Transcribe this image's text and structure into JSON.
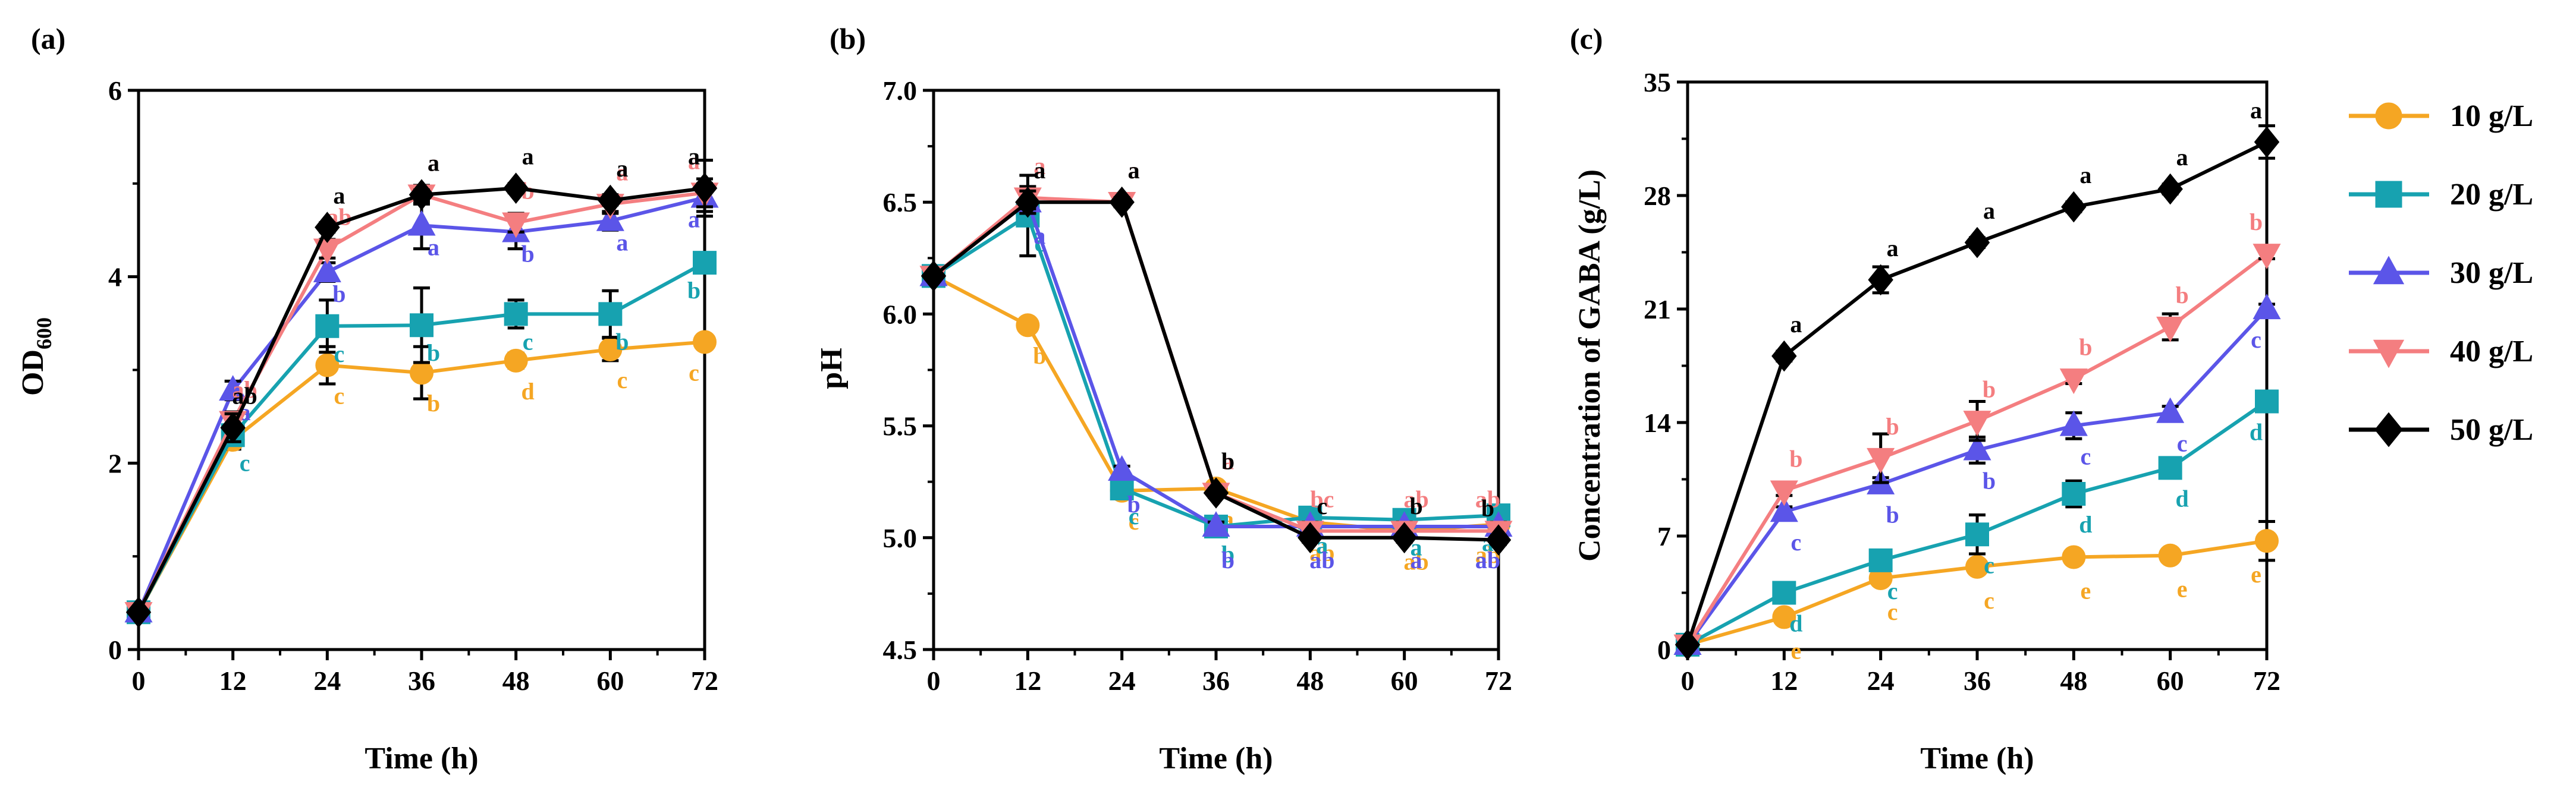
{
  "colors": {
    "10 g/L": "#F5A623",
    "20 g/L": "#17A2B0",
    "30 g/L": "#5B55E8",
    "40 g/L": "#F47E80",
    "50 g/L": "#000000"
  },
  "legend": [
    {
      "label": "10 g/L",
      "marker": "circle"
    },
    {
      "label": "20 g/L",
      "marker": "square"
    },
    {
      "label": "30 g/L",
      "marker": "triangle-up"
    },
    {
      "label": "40 g/L",
      "marker": "triangle-down"
    },
    {
      "label": "50 g/L",
      "marker": "diamond"
    }
  ],
  "chart_data": [
    {
      "panel": "(a)",
      "type": "line",
      "xlabel": "Time (h)",
      "ylabel": "OD600",
      "x": [
        0,
        12,
        24,
        36,
        48,
        60,
        72
      ],
      "xticks": [
        "0",
        "12",
        "24",
        "36",
        "48",
        "60",
        "72"
      ],
      "ylim": [
        0,
        6
      ],
      "yticks": [
        0,
        2,
        4,
        6
      ],
      "ytick_labels": [
        "0",
        "2",
        "4",
        "6"
      ],
      "series": [
        {
          "name": "10 g/L",
          "values": [
            0.4,
            2.25,
            3.05,
            2.97,
            3.1,
            3.22,
            3.3
          ],
          "errors": [
            0,
            0.1,
            0.2,
            0.28,
            0.08,
            0.12,
            0.05
          ],
          "letters": [
            "",
            "",
            "c",
            "b",
            "d",
            "c",
            "c"
          ]
        },
        {
          "name": "20 g/L",
          "values": [
            0.4,
            2.3,
            3.47,
            3.48,
            3.6,
            3.6,
            4.15
          ],
          "errors": [
            0,
            0.1,
            0.28,
            0.4,
            0.15,
            0.25,
            0.1
          ],
          "letters": [
            "",
            "c",
            "c",
            "b",
            "c",
            "b",
            "b"
          ]
        },
        {
          "name": "30 g/L",
          "values": [
            0.4,
            2.78,
            4.05,
            4.55,
            4.48,
            4.6,
            4.85
          ],
          "errors": [
            0,
            0.1,
            0.1,
            0.25,
            0.18,
            0.1,
            0.15
          ],
          "letters": [
            "",
            "a",
            "b",
            "a",
            "b",
            "a",
            "a"
          ]
        },
        {
          "name": "40 g/L",
          "values": [
            0.4,
            2.45,
            4.3,
            4.88,
            4.58,
            4.78,
            4.9
          ],
          "errors": [
            0,
            0.1,
            0.1,
            0.1,
            0.1,
            0.1,
            0.15
          ],
          "letters": [
            "",
            "ab",
            "ab",
            "a",
            "b",
            "a",
            "a"
          ]
        },
        {
          "name": "50 g/L",
          "values": [
            0.4,
            2.38,
            4.53,
            4.88,
            4.95,
            4.82,
            4.95
          ],
          "errors": [
            0,
            0.15,
            0.05,
            0.05,
            0.05,
            0.05,
            0.3
          ],
          "letters": [
            "",
            "ab",
            "a",
            "a",
            "a",
            "a",
            "a"
          ]
        }
      ]
    },
    {
      "panel": "(b)",
      "type": "line",
      "xlabel": "Time (h)",
      "ylabel": "pH",
      "x": [
        0,
        12,
        24,
        36,
        48,
        60,
        72
      ],
      "xticks": [
        "0",
        "12",
        "24",
        "36",
        "48",
        "60",
        "72"
      ],
      "ylim": [
        4.5,
        7.0
      ],
      "yticks": [
        4.5,
        5.0,
        5.5,
        6.0,
        6.5,
        7.0
      ],
      "ytick_labels": [
        "4.5",
        "5.0",
        "5.5",
        "6.0",
        "6.5",
        "7.0"
      ],
      "series": [
        {
          "name": "10 g/L",
          "values": [
            6.17,
            5.95,
            5.21,
            5.22,
            5.07,
            5.03,
            5.06
          ],
          "errors": [
            0,
            0.02,
            0.02,
            0.02,
            0.02,
            0.02,
            0.02
          ],
          "letters": [
            "",
            "b",
            "c",
            "a",
            "ab",
            "ab",
            "ab"
          ]
        },
        {
          "name": "20 g/L",
          "values": [
            6.17,
            6.44,
            5.22,
            5.05,
            5.09,
            5.08,
            5.1
          ],
          "errors": [
            0,
            0.18,
            0.02,
            0.04,
            0.02,
            0.02,
            0.02
          ],
          "letters": [
            "",
            "c",
            "c",
            "b",
            "a",
            "a",
            "a"
          ]
        },
        {
          "name": "30 g/L",
          "values": [
            6.17,
            6.5,
            5.3,
            5.05,
            5.05,
            5.05,
            5.05
          ],
          "errors": [
            0,
            0.05,
            0.02,
            0.02,
            0.02,
            0.02,
            0.02
          ],
          "letters": [
            "",
            "a",
            "b",
            "b",
            "ab",
            "a",
            "ab"
          ]
        },
        {
          "name": "40 g/L",
          "values": [
            6.17,
            6.52,
            6.5,
            5.2,
            5.03,
            5.03,
            5.03
          ],
          "errors": [
            0,
            0.05,
            0.02,
            0.02,
            0.02,
            0.02,
            0.02
          ],
          "letters": [
            "",
            "a",
            "a",
            "a",
            "bc",
            "ab",
            "ab"
          ]
        },
        {
          "name": "50 g/L",
          "values": [
            6.17,
            6.5,
            6.5,
            5.2,
            5.0,
            5.0,
            4.99
          ],
          "errors": [
            0,
            0.05,
            0.02,
            0.02,
            0.02,
            0.02,
            0.02
          ],
          "letters": [
            "",
            "a",
            "a",
            "b",
            "c",
            "b",
            "b"
          ]
        }
      ]
    },
    {
      "panel": "(c)",
      "type": "line",
      "xlabel": "Time (h)",
      "ylabel": "Concentration of GABA (g/L)",
      "x": [
        0,
        12,
        24,
        36,
        48,
        60,
        72
      ],
      "xticks": [
        "0",
        "12",
        "24",
        "36",
        "48",
        "60",
        "72"
      ],
      "ylim": [
        0,
        35
      ],
      "yticks": [
        0,
        7,
        14,
        21,
        28,
        35
      ],
      "ytick_labels": [
        "0",
        "7",
        "14",
        "21",
        "28",
        "35"
      ],
      "series": [
        {
          "name": "10 g/L",
          "values": [
            0.3,
            2.0,
            4.4,
            5.1,
            5.7,
            5.8,
            6.7
          ],
          "errors": [
            0,
            0.3,
            0.4,
            0.3,
            0.3,
            0.3,
            1.2
          ],
          "letters": [
            "",
            "e",
            "c",
            "c",
            "e",
            "e",
            "e"
          ]
        },
        {
          "name": "20 g/L",
          "values": [
            0.3,
            3.5,
            5.5,
            7.1,
            9.6,
            11.2,
            15.3
          ],
          "errors": [
            0,
            0.4,
            0.5,
            1.2,
            0.8,
            0.5,
            0.4
          ],
          "letters": [
            "",
            "d",
            "c",
            "c",
            "d",
            "d",
            "d"
          ]
        },
        {
          "name": "30 g/L",
          "values": [
            0.3,
            8.5,
            10.2,
            12.3,
            13.8,
            14.6,
            21.0
          ],
          "errors": [
            0,
            0.3,
            0.4,
            0.8,
            0.8,
            0.4,
            0.3
          ],
          "letters": [
            "",
            "c",
            "b",
            "b",
            "c",
            "c",
            "c"
          ]
        },
        {
          "name": "40 g/L",
          "values": [
            0.3,
            9.8,
            11.8,
            14.1,
            16.7,
            19.9,
            24.4
          ],
          "errors": [
            0,
            0.3,
            1.5,
            1.2,
            0.3,
            0.8,
            0.3
          ],
          "letters": [
            "",
            "b",
            "b",
            "b",
            "b",
            "b",
            "b"
          ]
        },
        {
          "name": "50 g/L",
          "values": [
            0.3,
            18.1,
            22.8,
            25.1,
            27.3,
            28.4,
            31.3
          ],
          "errors": [
            0,
            0.3,
            0.8,
            0.3,
            0.3,
            0.3,
            1.0
          ],
          "letters": [
            "",
            "a",
            "a",
            "a",
            "a",
            "a",
            "a"
          ]
        }
      ]
    }
  ]
}
